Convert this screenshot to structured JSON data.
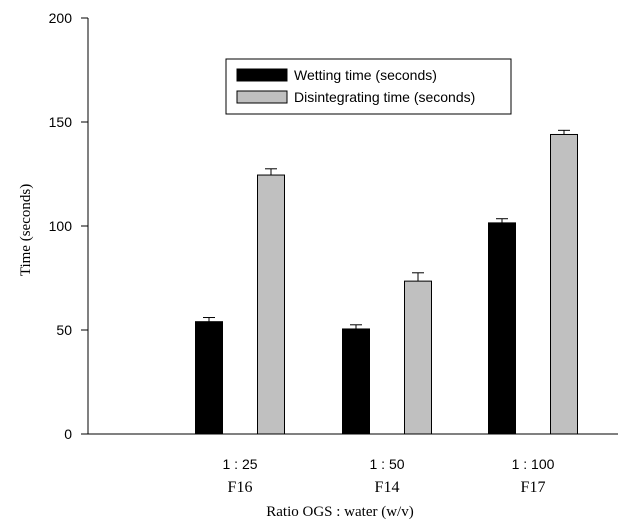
{
  "chart_data": {
    "type": "bar",
    "title": "",
    "xlabel": "Ratio OGS : water (w/v)",
    "ylabel": "Time (seconds)",
    "ylim": [
      0,
      200
    ],
    "yticks": [
      0,
      50,
      100,
      150,
      200
    ],
    "categories": [
      "1 : 25",
      "1 : 50",
      "1 : 100"
    ],
    "category_sublabels": [
      "F16",
      "F14",
      "F17"
    ],
    "series": [
      {
        "name": "Wetting time (seconds)",
        "values": [
          54,
          50.5,
          101.5
        ],
        "errors": [
          2,
          2,
          2
        ],
        "color": "#000000"
      },
      {
        "name": "Disintegrating time (seconds)",
        "values": [
          124.5,
          73.5,
          144
        ],
        "errors": [
          3,
          4,
          2
        ],
        "color": "#c0c0c0"
      }
    ],
    "legend_position": "top-center",
    "grid": false
  }
}
